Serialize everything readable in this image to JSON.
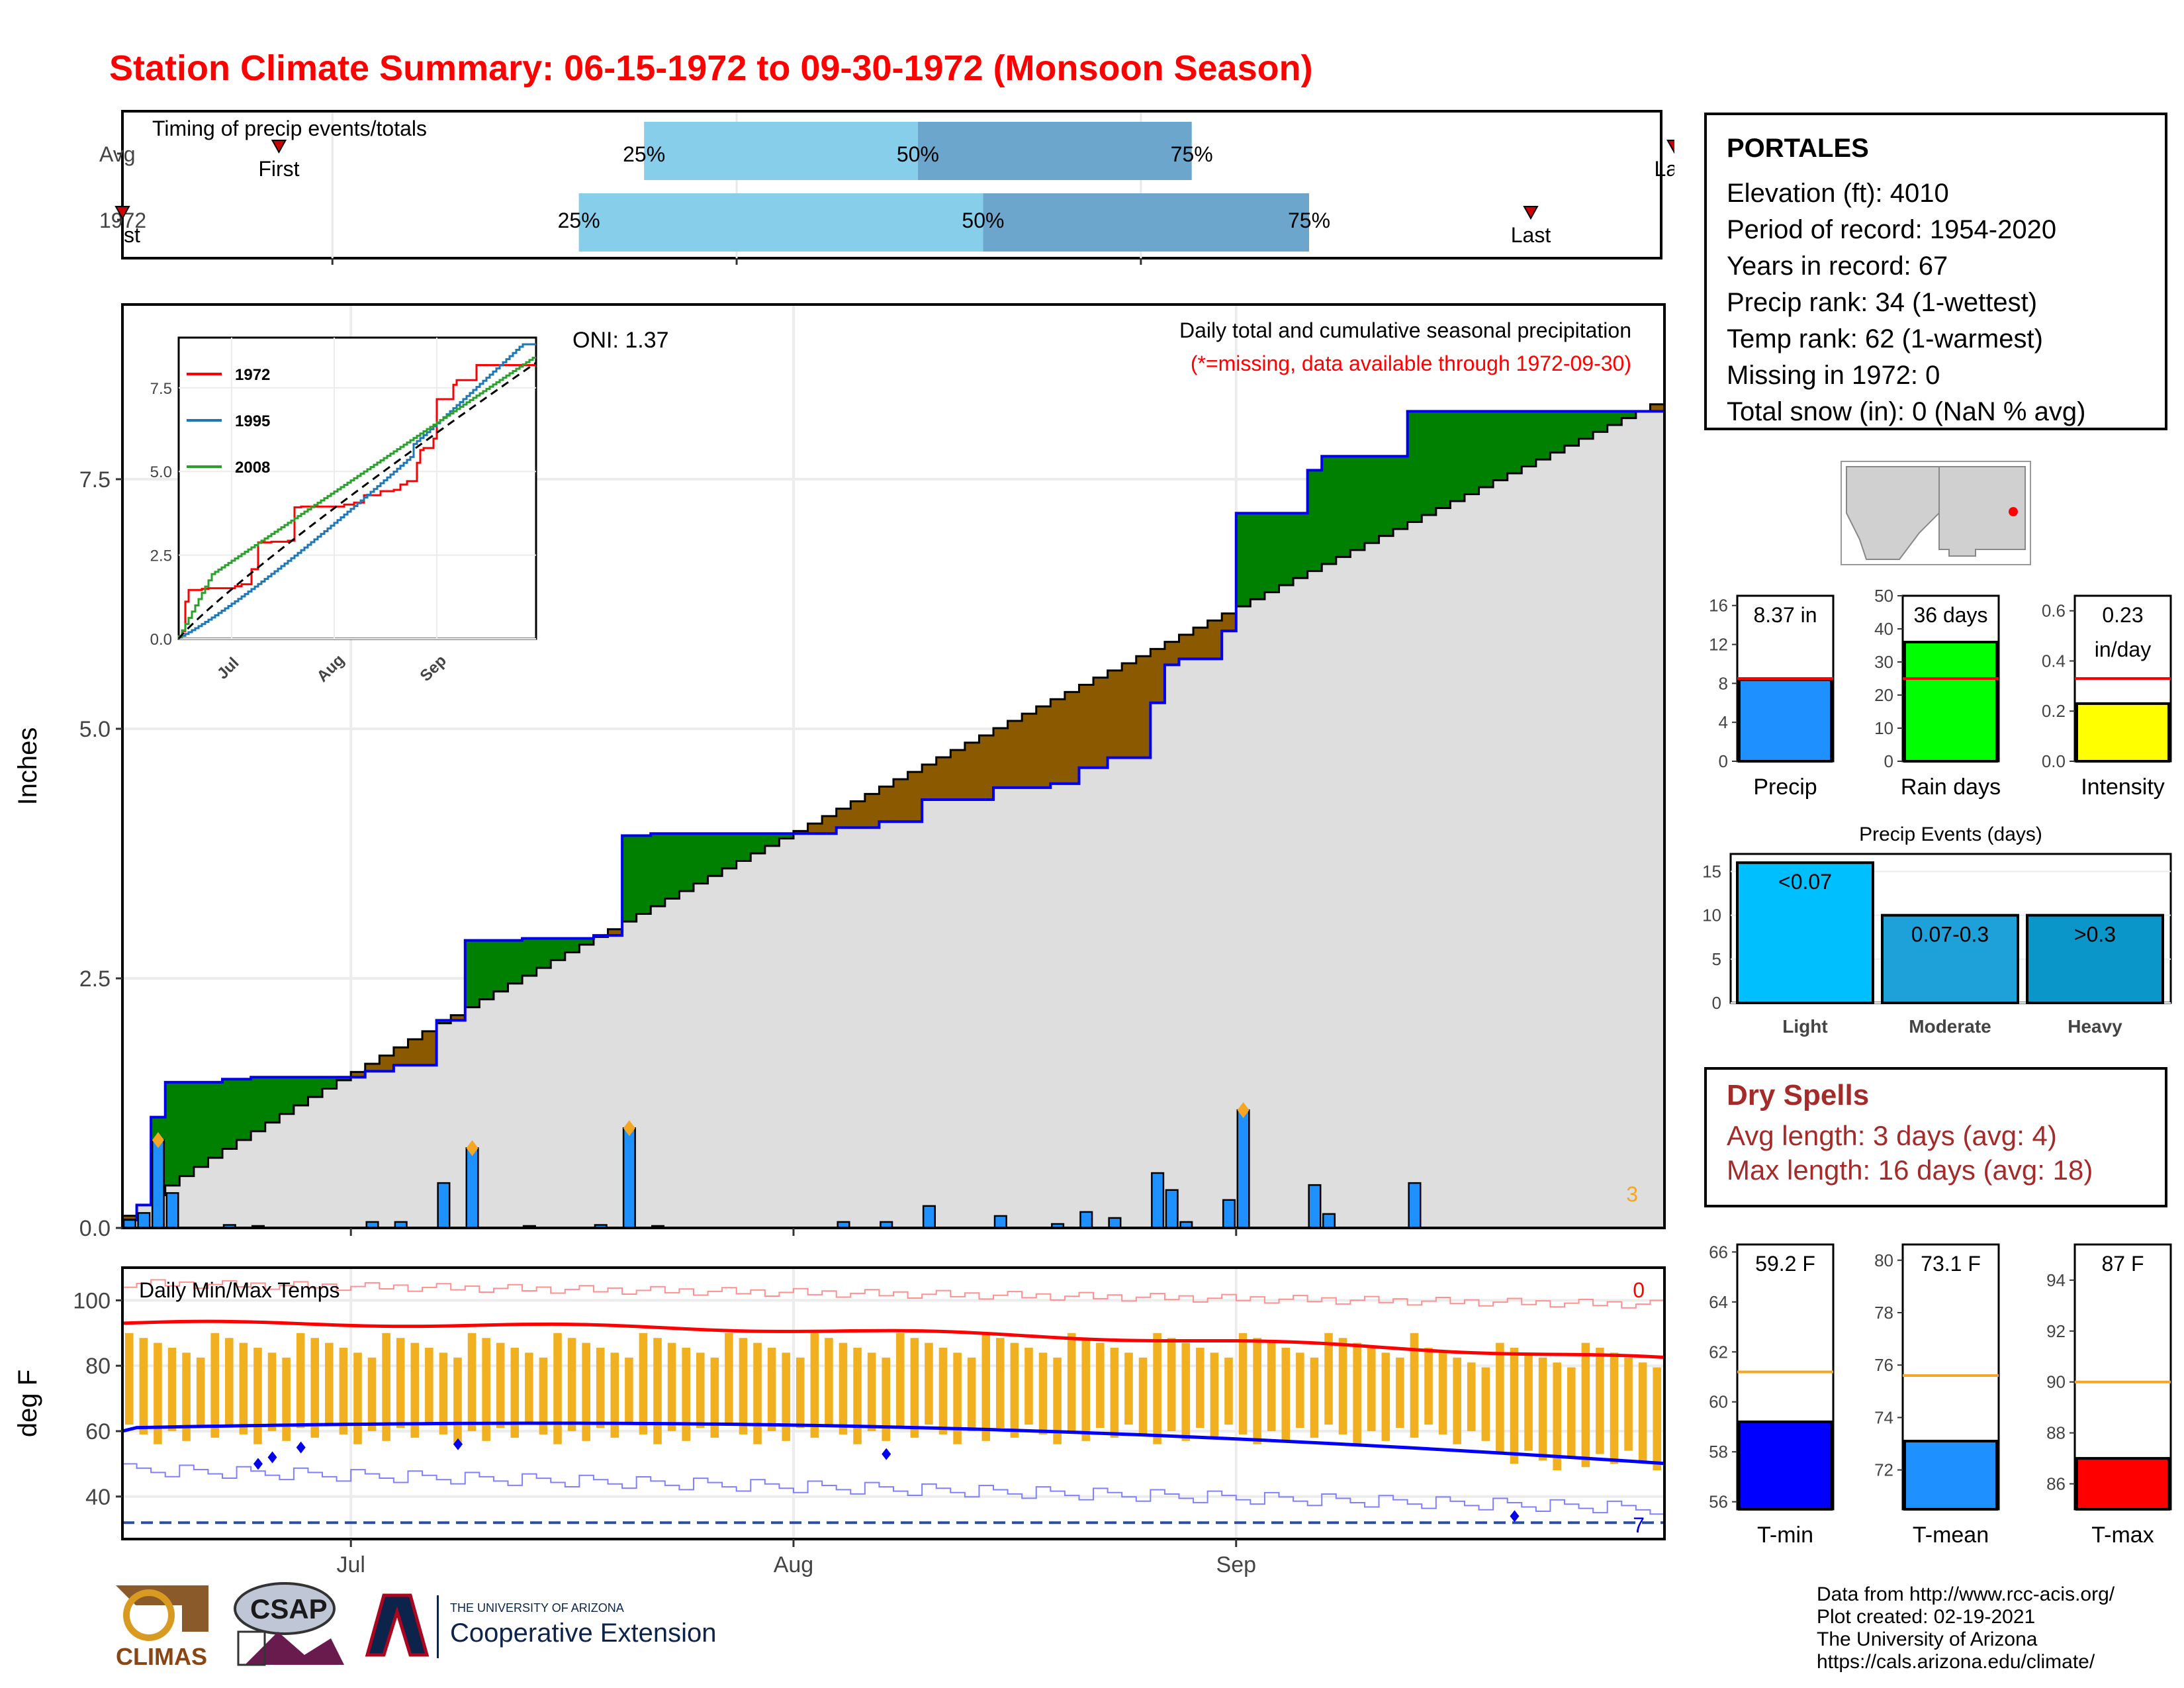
{
  "title": "Station Climate Summary: 06-15-1972 to 09-30-1972 (Monsoon Season)",
  "colors": {
    "title_red": "#ff0000",
    "above_avg": "#008000",
    "below_avg": "#8b5a00",
    "precip_bar": "#1e90ff",
    "climo_fill": "#dedede",
    "tmin": "#0000ff",
    "tmax": "#ff0000",
    "temp_bar": "#f0b020",
    "light_blue": "#87ceeb",
    "mid_blue": "#6ca6cd"
  },
  "timing": {
    "label": "Timing of precip events/totals",
    "rows": [
      {
        "year_label": "Avg",
        "first_label": "First",
        "last_label": "Last",
        "p25": "25%",
        "p50": "50%",
        "p75": "75%",
        "first_doy": 12,
        "p25_doy": 40,
        "p50_doy": 61,
        "p75_doy": 82,
        "last_doy": 119
      },
      {
        "year_label": "1972",
        "first_label": "First",
        "last_label": "Last",
        "p25": "25%",
        "p50": "50%",
        "p75": "75%",
        "first_doy": 0,
        "p25_doy": 35,
        "p50_doy": 66,
        "p75_doy": 91,
        "last_doy": 108
      }
    ]
  },
  "precip_chart": {
    "ylabel": "Inches",
    "yticks": [
      "0.0",
      "2.5",
      "5.0",
      "7.5"
    ],
    "ytick_values": [
      0,
      2.5,
      5.0,
      7.5
    ],
    "ylim": [
      0,
      9.25
    ],
    "xticks": [
      "Jul",
      "Aug",
      "Sep"
    ],
    "xtick_doy": [
      16,
      47,
      78
    ],
    "oni": "ONI: 1.37",
    "header": "Daily total and cumulative seasonal precipitation",
    "missing_note": "(*=missing, data available through 1972-09-30)",
    "missing_count": "3",
    "climo_end": 8.25
  },
  "chart_data": {
    "type": "bar",
    "title": "Daily total and cumulative seasonal precipitation",
    "ylabel": "Inches",
    "ylim": [
      0,
      9.25
    ],
    "days": 108,
    "start_date": "1972-06-15",
    "daily_precip": [
      [
        0,
        0.08
      ],
      [
        1,
        0.15
      ],
      [
        2,
        0.88
      ],
      [
        3,
        0.35
      ],
      [
        7,
        0.03
      ],
      [
        9,
        0.02
      ],
      [
        17,
        0.06
      ],
      [
        19,
        0.06
      ],
      [
        22,
        0.45
      ],
      [
        24,
        0.8
      ],
      [
        28,
        0.02
      ],
      [
        33,
        0.03
      ],
      [
        35,
        1.0
      ],
      [
        37,
        0.02
      ],
      [
        50,
        0.06
      ],
      [
        53,
        0.06
      ],
      [
        56,
        0.22
      ],
      [
        61,
        0.12
      ],
      [
        65,
        0.04
      ],
      [
        67,
        0.16
      ],
      [
        69,
        0.1
      ],
      [
        72,
        0.55
      ],
      [
        73,
        0.38
      ],
      [
        74,
        0.06
      ],
      [
        77,
        0.28
      ],
      [
        78,
        1.18
      ],
      [
        83,
        0.43
      ],
      [
        84,
        0.14
      ],
      [
        90,
        0.45
      ]
    ],
    "inset": {
      "series": [
        {
          "name": "1972",
          "color": "#ff0000"
        },
        {
          "name": "1995",
          "color": "#1f77b4"
        },
        {
          "name": "2008",
          "color": "#2ca02c"
        }
      ],
      "yticks": [
        "0.0",
        "2.5",
        "5.0",
        "7.5"
      ],
      "xticks": [
        "Jul",
        "Aug",
        "Sep"
      ]
    }
  },
  "temp_chart": {
    "label": "Daily Min/Max Temps",
    "ylabel": "deg F",
    "yticks": [
      "40",
      "60",
      "80",
      "100"
    ],
    "ytick_values": [
      40,
      60,
      80,
      100
    ],
    "ylim": [
      27,
      110
    ],
    "count_max": "0",
    "count_min": "7"
  },
  "station": {
    "name": "PORTALES",
    "lines": [
      "Elevation (ft): 4010",
      "Period of record: 1954-2020",
      "Years in record: 67",
      "Precip rank: 34 (1-wettest)",
      "Temp rank: 62 (1-warmest)",
      "Missing in 1972: 0",
      "Total snow (in): 0 (NaN % avg)"
    ]
  },
  "mini_precip": [
    {
      "label": "Precip",
      "value_text": "8.37 in",
      "value": 8.37,
      "avg": 8.5,
      "ymax": 17,
      "ticks": [
        "0",
        "4",
        "8",
        "12",
        "16"
      ],
      "tick_values": [
        0,
        4,
        8,
        12,
        16
      ],
      "color": "#1e90ff"
    },
    {
      "label": "Rain days",
      "value_text": "36 days",
      "value": 36,
      "avg": 25,
      "ymax": 50,
      "ticks": [
        "0",
        "10",
        "20",
        "30",
        "40",
        "50"
      ],
      "tick_values": [
        0,
        10,
        20,
        30,
        40,
        50
      ],
      "color": "#00ff00"
    },
    {
      "label": "Intensity",
      "value_text": "0.23",
      "value_text2": "in/day",
      "value": 0.23,
      "avg": 0.33,
      "ymax": 0.66,
      "ticks": [
        "0.0",
        "0.2",
        "0.4",
        "0.6"
      ],
      "tick_values": [
        0,
        0.2,
        0.4,
        0.6
      ],
      "color": "#ffff00"
    }
  ],
  "events": {
    "title": "Precip Events (days)",
    "yticks": [
      "0",
      "5",
      "10",
      "15"
    ],
    "ytick_values": [
      0,
      5,
      10,
      15
    ],
    "ymax": 17,
    "bars": [
      {
        "category": "Light",
        "label": "<0.07",
        "value": 16,
        "color": "#00bfff"
      },
      {
        "category": "Moderate",
        "label": "0.07-0.3",
        "value": 10,
        "color": "#1ea0d8"
      },
      {
        "category": "Heavy",
        "label": ">0.3",
        "value": 10,
        "color": "#0a96c8"
      }
    ]
  },
  "dry_spells": {
    "title": "Dry Spells",
    "avg_length": "Avg length: 3 days (avg: 4)",
    "max_length": "Max length: 16 days (avg: 18)"
  },
  "mini_temp": [
    {
      "label": "T-min",
      "value_text": "59.2 F",
      "value": 59.2,
      "avg": 61.2,
      "ymin": 55.7,
      "ymax": 66.3,
      "ticks": [
        "56",
        "58",
        "60",
        "62",
        "64",
        "66"
      ],
      "tick_values": [
        56,
        58,
        60,
        62,
        64,
        66
      ],
      "color": "#0000ff"
    },
    {
      "label": "T-mean",
      "value_text": "73.1 F",
      "value": 73.1,
      "avg": 75.6,
      "ymin": 70.5,
      "ymax": 80.6,
      "ticks": [
        "72",
        "74",
        "76",
        "78",
        "80"
      ],
      "tick_values": [
        72,
        74,
        76,
        78,
        80
      ],
      "color": "#1e90ff"
    },
    {
      "label": "T-max",
      "value_text": "87 F",
      "value": 87,
      "avg": 90,
      "ymin": 85.0,
      "ymax": 95.4,
      "ticks": [
        "86",
        "88",
        "90",
        "92",
        "94"
      ],
      "tick_values": [
        86,
        88,
        90,
        92,
        94
      ],
      "color": "#ff0000"
    }
  ],
  "credits": [
    "Data from http://www.rcc-acis.org/",
    "Plot created: 02-19-2021",
    "The University of Arizona",
    "https://cals.arizona.edu/climate/"
  ],
  "logos": {
    "climas": "CLIMAS",
    "csap": "CSAP",
    "ua_small": "THE UNIVERSITY OF ARIZONA",
    "ua_big": "Cooperative Extension"
  }
}
